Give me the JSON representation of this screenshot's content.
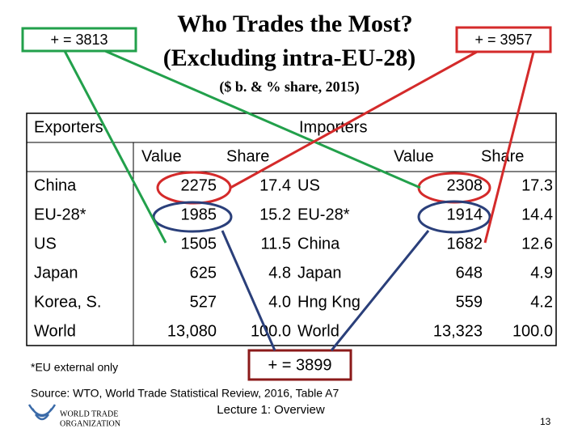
{
  "header": {
    "title": "Who Trades the Most?",
    "title_line2": "(Excluding intra-EU-28)",
    "subtitle": "($ b. & % share, 2015)"
  },
  "callouts": {
    "us_total": "+ = 3813",
    "china_total": "+ = 3957",
    "eu_total": "+ = 3899"
  },
  "table": {
    "group_headers": [
      "Exporters",
      "Importers"
    ],
    "column_headers": [
      "Value",
      "Share",
      "Value",
      "Share"
    ],
    "rows": [
      [
        "China",
        "2275",
        "17.4",
        "US",
        "2308",
        "17.3"
      ],
      [
        "EU-28*",
        "1985",
        "15.2",
        "EU-28*",
        "1914",
        "14.4"
      ],
      [
        "US",
        "1505",
        "11.5",
        "China",
        "1682",
        "12.6"
      ],
      [
        "Japan",
        "625",
        "4.8",
        "Japan",
        "648",
        "4.9"
      ],
      [
        "Korea, S.",
        "527",
        "4.0",
        "Hng Kng",
        "559",
        "4.2"
      ],
      [
        "World",
        "13,080",
        "100.0",
        "World",
        "13,323",
        "100.0"
      ]
    ]
  },
  "footer": {
    "note": "*EU external only",
    "source": "Source:  WTO, World Trade Statistical Review, 2016, Table A7",
    "lecture": "Lecture 1:  Overview",
    "logo_line1": "WORLD TRADE",
    "logo_line2": "ORGANIZATION",
    "page_number": "13"
  }
}
